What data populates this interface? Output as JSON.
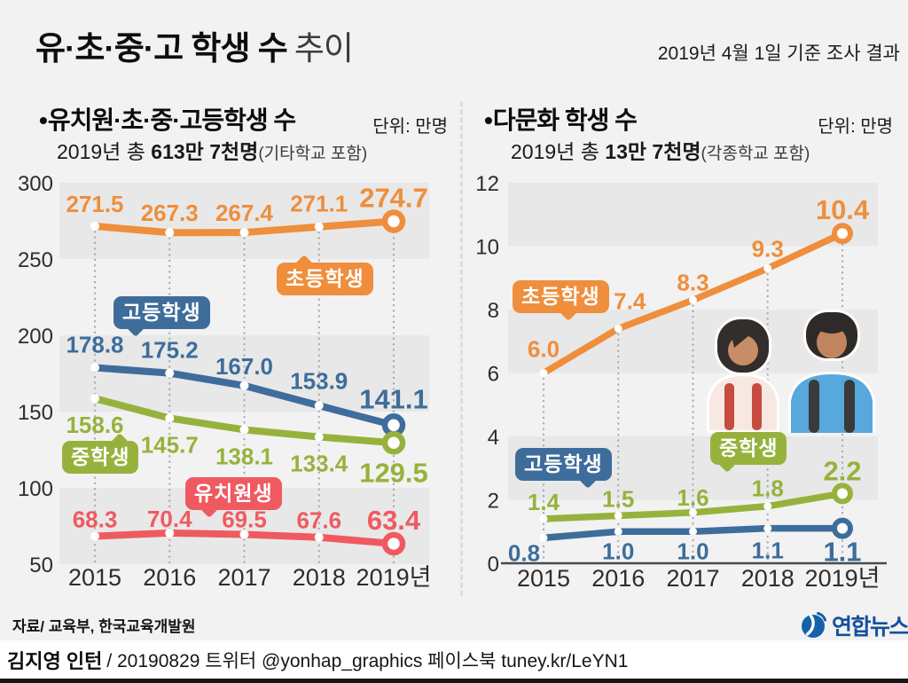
{
  "header": {
    "title_main": "유·초·중·고 학생 수",
    "title_sub": "추이",
    "date_note": "2019년 4월 1일 기준 조사 결과"
  },
  "chart_data": [
    {
      "type": "line",
      "bullet": "•",
      "title": "유치원·초·중·고등학생 수",
      "unit": "단위: 만명",
      "subtitle_pre": "2019년 총",
      "subtitle_strong": " 613만 7천명",
      "subtitle_note": "(기타학교 포함)",
      "categories": [
        "2015",
        "2016",
        "2017",
        "2018",
        "2019년"
      ],
      "ylim": [
        50,
        300
      ],
      "yticks": [
        300,
        250,
        200,
        150,
        100,
        50
      ],
      "bands": [
        [
          250,
          300
        ],
        [
          150,
          200
        ],
        [
          50,
          100
        ]
      ],
      "grid": "banded-rows",
      "legend_style": "bubble-callouts",
      "series": [
        {
          "name": "초등학생",
          "color": "#EF8E3C",
          "values": [
            271.5,
            267.3,
            267.4,
            271.1,
            274.7
          ]
        },
        {
          "name": "고등학생",
          "color": "#3E6D9B",
          "values": [
            178.8,
            175.2,
            167.0,
            153.9,
            141.1
          ]
        },
        {
          "name": "중학생",
          "color": "#97B23C",
          "values": [
            158.6,
            145.7,
            138.1,
            133.4,
            129.5
          ]
        },
        {
          "name": "유치원생",
          "color": "#EF5A60",
          "values": [
            68.3,
            70.4,
            69.5,
            67.6,
            63.4
          ]
        }
      ]
    },
    {
      "type": "line",
      "bullet": "•",
      "title": "다문화 학생 수",
      "unit": "단위: 만명",
      "subtitle_pre": "2019년 총",
      "subtitle_strong": " 13만 7천명",
      "subtitle_note": "(각종학교 포함)",
      "categories": [
        "2015",
        "2016",
        "2017",
        "2018",
        "2019년"
      ],
      "ylim": [
        0,
        12
      ],
      "yticks": [
        12,
        10,
        8,
        6,
        4,
        2,
        0
      ],
      "bands": [
        [
          10,
          12
        ],
        [
          6,
          8
        ],
        [
          2,
          4
        ]
      ],
      "grid": "banded-rows",
      "legend_style": "bubble-callouts",
      "series": [
        {
          "name": "초등학생",
          "color": "#EF8E3C",
          "values": [
            6.0,
            7.4,
            8.3,
            9.3,
            10.4
          ]
        },
        {
          "name": "중학생",
          "color": "#97B23C",
          "values": [
            1.4,
            1.5,
            1.6,
            1.8,
            2.2
          ]
        },
        {
          "name": "고등학생",
          "color": "#3E6D9B",
          "values": [
            0.8,
            1.0,
            1.0,
            1.1,
            1.1
          ]
        }
      ]
    }
  ],
  "footer": {
    "source": "자료/ 교육부, 한국교육개발원"
  },
  "credit": {
    "author": "김지영 인턴",
    "rest": "/ 20190829 트위터 @yonhap_graphics  페이스북 tuney.kr/LeYN1"
  },
  "logo": {
    "text": "연합뉴스",
    "color": "#14509c"
  }
}
